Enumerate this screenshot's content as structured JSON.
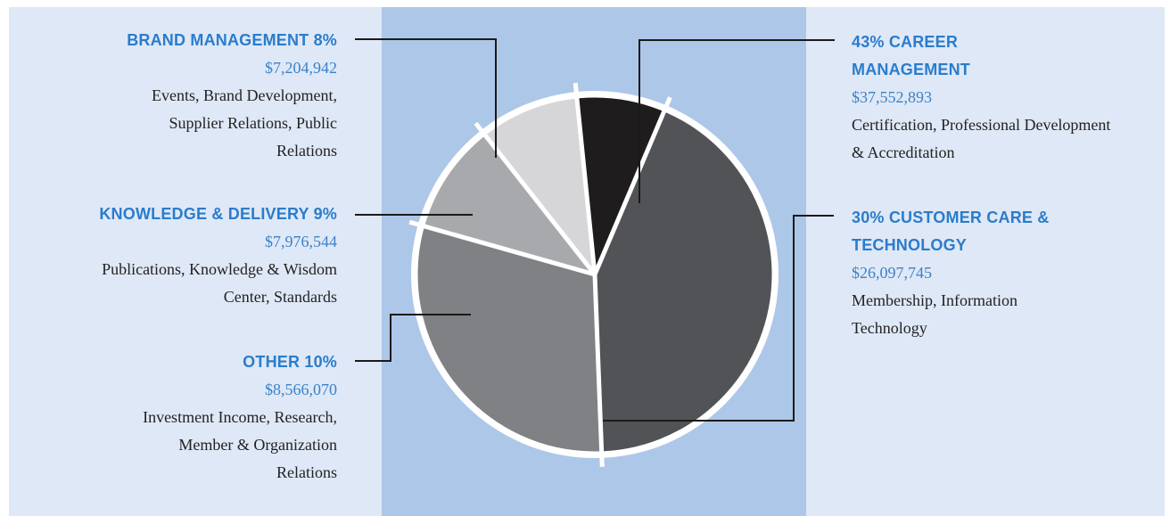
{
  "chart_data": {
    "type": "pie",
    "title": "",
    "slices": [
      {
        "heading": "43% CAREER MANAGEMENT",
        "percent": 43,
        "amount": "$37,552,893",
        "description": "Certification, Professional Development & Accreditation",
        "color": "#515356"
      },
      {
        "heading": "30% CUSTOMER CARE & TECHNOLOGY",
        "percent": 30,
        "amount": "$26,097,745",
        "description": "Membership, Information Technology",
        "color": "#808184"
      },
      {
        "heading": "OTHER 10%",
        "percent": 10,
        "amount": "$8,566,070",
        "description": "Investment Income, Research, Member & Organization Relations",
        "color": "#a8a9ac"
      },
      {
        "heading": "KNOWLEDGE & DELIVERY 9%",
        "percent": 9,
        "amount": "$7,976,544",
        "description": "Publications, Knowledge & Wisdom Center, Standards",
        "color": "#d6d6d8"
      },
      {
        "heading": "BRAND MANAGEMENT 8%",
        "percent": 8,
        "amount": "$7,204,942",
        "description": "Events, Brand Development, Supplier Relations, Public Relations",
        "color": "#1f1c1d"
      }
    ],
    "start_angle_deg": 23,
    "direction": "clockwise",
    "legend": "callouts"
  },
  "colors": {
    "panel_side": "#dfe8f6",
    "panel_center": "#adc7e8",
    "heading": "#2a7ccc",
    "amount": "#3b82c8",
    "separator": "#ffffff"
  }
}
